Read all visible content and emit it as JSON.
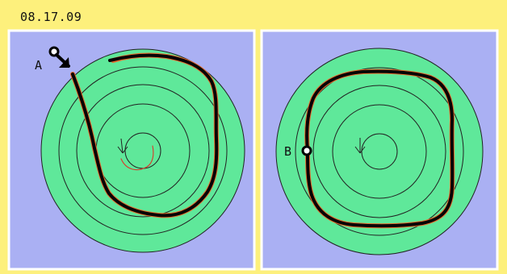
{
  "date": "08.17.09",
  "panels": [
    {
      "marker_label": "A"
    },
    {
      "marker_label": "B"
    }
  ],
  "colors": {
    "background": "#fdf07c",
    "panel": "#aab0f3",
    "target": "#5fe89a",
    "trajectory_primary": "#050505",
    "trajectory_secondary": "#e56a2c"
  }
}
